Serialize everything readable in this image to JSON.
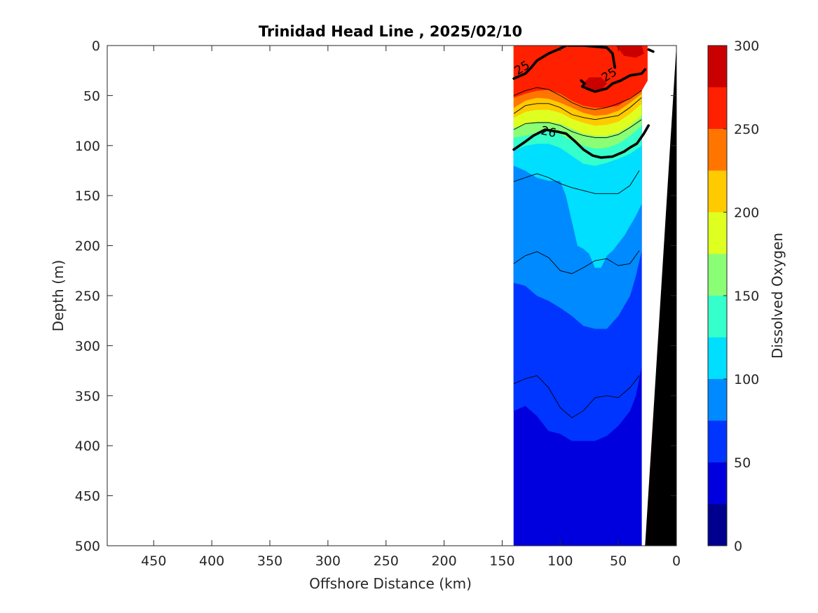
{
  "chart_data": {
    "type": "contour",
    "title": "Trinidad Head Line , 2025/02/10",
    "xlabel": "Offshore Distance (km)",
    "ylabel": "Depth (m)",
    "xlim": [
      490,
      0
    ],
    "ylim": [
      0,
      500
    ],
    "x_reversed": true,
    "y_reversed": true,
    "x_ticks": [
      450,
      400,
      350,
      300,
      250,
      200,
      150,
      100,
      50,
      0
    ],
    "y_ticks": [
      0,
      50,
      100,
      150,
      200,
      250,
      300,
      350,
      400,
      450,
      500
    ],
    "grid": false,
    "filled_variable": "Dissolved Oxygen",
    "colorbar": {
      "label": "Dissolved Oxygen",
      "range": [
        0,
        300
      ],
      "ticks": [
        0,
        50,
        100,
        150,
        200,
        250,
        300
      ],
      "levels": [
        {
          "from": 0,
          "to": 25,
          "color": "#00008f"
        },
        {
          "from": 25,
          "to": 50,
          "color": "#0000df"
        },
        {
          "from": 50,
          "to": 75,
          "color": "#0035ff"
        },
        {
          "from": 75,
          "to": 100,
          "color": "#008aff"
        },
        {
          "from": 100,
          "to": 125,
          "color": "#00dfff"
        },
        {
          "from": 125,
          "to": 150,
          "color": "#35ffca"
        },
        {
          "from": 150,
          "to": 175,
          "color": "#8aff75"
        },
        {
          "from": 175,
          "to": 200,
          "color": "#dfff20"
        },
        {
          "from": 200,
          "to": 225,
          "color": "#ffca00"
        },
        {
          "from": 225,
          "to": 250,
          "color": "#ff7500"
        },
        {
          "from": 250,
          "to": 275,
          "color": "#ff2000"
        },
        {
          "from": 275,
          "to": 300,
          "color": "#ca0000"
        }
      ]
    },
    "bottom_fill_color": "#000000",
    "filled_regions": [
      {
        "color": "#0000df",
        "points": [
          [
            140,
            500
          ],
          [
            30,
            500
          ],
          [
            30,
            0
          ],
          [
            140,
            0
          ]
        ]
      },
      {
        "color": "#0035ff",
        "points": [
          [
            140,
            365
          ],
          [
            130,
            360
          ],
          [
            120,
            370
          ],
          [
            110,
            385
          ],
          [
            100,
            388
          ],
          [
            90,
            395
          ],
          [
            80,
            395
          ],
          [
            70,
            395
          ],
          [
            60,
            390
          ],
          [
            50,
            380
          ],
          [
            40,
            365
          ],
          [
            35,
            350
          ],
          [
            30,
            320
          ],
          [
            30,
            0
          ],
          [
            140,
            0
          ]
        ]
      },
      {
        "color": "#008aff",
        "points": [
          [
            140,
            237
          ],
          [
            130,
            240
          ],
          [
            120,
            250
          ],
          [
            110,
            255
          ],
          [
            100,
            262
          ],
          [
            90,
            270
          ],
          [
            80,
            280
          ],
          [
            70,
            283
          ],
          [
            60,
            283
          ],
          [
            50,
            270
          ],
          [
            40,
            250
          ],
          [
            35,
            230
          ],
          [
            30,
            205
          ],
          [
            30,
            0
          ],
          [
            140,
            0
          ]
        ]
      },
      {
        "color": "#00dfff",
        "points": [
          [
            140,
            120
          ],
          [
            130,
            125
          ],
          [
            120,
            132
          ],
          [
            110,
            135
          ],
          [
            100,
            135
          ],
          [
            95,
            150
          ],
          [
            90,
            175
          ],
          [
            85,
            200
          ],
          [
            80,
            203
          ],
          [
            75,
            208
          ],
          [
            70,
            222
          ],
          [
            65,
            222
          ],
          [
            60,
            210
          ],
          [
            55,
            205
          ],
          [
            45,
            190
          ],
          [
            35,
            170
          ],
          [
            30,
            158
          ],
          [
            30,
            0
          ],
          [
            140,
            0
          ]
        ]
      },
      {
        "color": "#35ffca",
        "points": [
          [
            140,
            105
          ],
          [
            130,
            100
          ],
          [
            120,
            98
          ],
          [
            110,
            98
          ],
          [
            100,
            102
          ],
          [
            90,
            110
          ],
          [
            80,
            118
          ],
          [
            70,
            120
          ],
          [
            60,
            117
          ],
          [
            50,
            113
          ],
          [
            40,
            108
          ],
          [
            30,
            100
          ],
          [
            30,
            0
          ],
          [
            140,
            0
          ]
        ]
      },
      {
        "color": "#8aff75",
        "points": [
          [
            140,
            92
          ],
          [
            130,
            90
          ],
          [
            120,
            87
          ],
          [
            110,
            85
          ],
          [
            100,
            88
          ],
          [
            90,
            95
          ],
          [
            80,
            100
          ],
          [
            70,
            103
          ],
          [
            60,
            102
          ],
          [
            50,
            98
          ],
          [
            40,
            90
          ],
          [
            30,
            80
          ],
          [
            30,
            0
          ],
          [
            140,
            0
          ]
        ]
      },
      {
        "color": "#dfff20",
        "points": [
          [
            140,
            82
          ],
          [
            130,
            78
          ],
          [
            120,
            76
          ],
          [
            110,
            76
          ],
          [
            100,
            78
          ],
          [
            90,
            83
          ],
          [
            80,
            88
          ],
          [
            70,
            90
          ],
          [
            60,
            90
          ],
          [
            50,
            87
          ],
          [
            40,
            80
          ],
          [
            30,
            70
          ],
          [
            30,
            0
          ],
          [
            140,
            0
          ]
        ]
      },
      {
        "color": "#ffca00",
        "points": [
          [
            140,
            72
          ],
          [
            130,
            66
          ],
          [
            120,
            64
          ],
          [
            110,
            64
          ],
          [
            100,
            67
          ],
          [
            90,
            73
          ],
          [
            80,
            77
          ],
          [
            70,
            80
          ],
          [
            60,
            79
          ],
          [
            50,
            76
          ],
          [
            40,
            68
          ],
          [
            30,
            58
          ],
          [
            30,
            0
          ],
          [
            140,
            0
          ]
        ]
      },
      {
        "color": "#ff7500",
        "points": [
          [
            140,
            62
          ],
          [
            130,
            55
          ],
          [
            120,
            52
          ],
          [
            110,
            53
          ],
          [
            100,
            57
          ],
          [
            90,
            62
          ],
          [
            80,
            67
          ],
          [
            70,
            70
          ],
          [
            60,
            69
          ],
          [
            50,
            65
          ],
          [
            40,
            57
          ],
          [
            30,
            48
          ],
          [
            30,
            0
          ],
          [
            140,
            0
          ]
        ]
      },
      {
        "color": "#ff2000",
        "points": [
          [
            140,
            0
          ],
          [
            25,
            0
          ],
          [
            25,
            35
          ],
          [
            30,
            45
          ],
          [
            40,
            52
          ],
          [
            50,
            60
          ],
          [
            60,
            62
          ],
          [
            70,
            62
          ],
          [
            80,
            60
          ],
          [
            90,
            55
          ],
          [
            100,
            48
          ],
          [
            110,
            44
          ],
          [
            120,
            45
          ],
          [
            130,
            48
          ],
          [
            140,
            52
          ]
        ]
      },
      {
        "color": "#ca0000",
        "points": [
          [
            80,
            38
          ],
          [
            75,
            32
          ],
          [
            65,
            32
          ],
          [
            60,
            38
          ],
          [
            65,
            44
          ],
          [
            75,
            44
          ]
        ]
      },
      {
        "color": "#ca0000",
        "points": [
          [
            52,
            0
          ],
          [
            30,
            0
          ],
          [
            28,
            8
          ],
          [
            35,
            12
          ],
          [
            45,
            10
          ]
        ]
      },
      {
        "color": "#0000df",
        "points": [
          [
            113,
            428
          ],
          [
            110,
            423
          ],
          [
            107,
            428
          ],
          [
            108,
            450
          ],
          [
            110,
            463
          ],
          [
            112,
            455
          ],
          [
            113,
            440
          ]
        ]
      }
    ],
    "thin_contours": [
      {
        "points": [
          [
            140,
            50
          ],
          [
            130,
            45
          ],
          [
            120,
            42
          ],
          [
            110,
            44
          ],
          [
            100,
            50
          ],
          [
            90,
            57
          ],
          [
            80,
            62
          ],
          [
            70,
            64
          ],
          [
            60,
            62
          ],
          [
            50,
            58
          ],
          [
            40,
            53
          ],
          [
            30,
            45
          ]
        ]
      },
      {
        "points": [
          [
            140,
            68
          ],
          [
            130,
            60
          ],
          [
            120,
            58
          ],
          [
            110,
            58
          ],
          [
            100,
            62
          ],
          [
            90,
            69
          ],
          [
            80,
            72
          ],
          [
            70,
            74
          ],
          [
            60,
            72
          ],
          [
            50,
            70
          ],
          [
            40,
            62
          ],
          [
            30,
            52
          ]
        ]
      },
      {
        "points": [
          [
            140,
            84
          ],
          [
            130,
            78
          ],
          [
            120,
            77
          ],
          [
            110,
            77
          ],
          [
            100,
            80
          ],
          [
            90,
            86
          ],
          [
            80,
            90
          ],
          [
            70,
            92
          ],
          [
            60,
            92
          ],
          [
            50,
            89
          ],
          [
            40,
            82
          ],
          [
            30,
            74
          ]
        ]
      },
      {
        "points": [
          [
            140,
            136
          ],
          [
            130,
            132
          ],
          [
            120,
            128
          ],
          [
            110,
            132
          ],
          [
            100,
            138
          ],
          [
            90,
            142
          ],
          [
            80,
            145
          ],
          [
            70,
            148
          ],
          [
            60,
            148
          ],
          [
            50,
            148
          ],
          [
            40,
            140
          ],
          [
            32,
            125
          ]
        ]
      },
      {
        "points": [
          [
            140,
            218
          ],
          [
            130,
            210
          ],
          [
            120,
            206
          ],
          [
            110,
            212
          ],
          [
            100,
            225
          ],
          [
            90,
            228
          ],
          [
            80,
            222
          ],
          [
            70,
            215
          ],
          [
            60,
            213
          ],
          [
            50,
            220
          ],
          [
            40,
            218
          ],
          [
            32,
            205
          ]
        ]
      },
      {
        "points": [
          [
            140,
            338
          ],
          [
            130,
            333
          ],
          [
            120,
            330
          ],
          [
            110,
            342
          ],
          [
            100,
            362
          ],
          [
            90,
            372
          ],
          [
            80,
            365
          ],
          [
            70,
            352
          ],
          [
            60,
            350
          ],
          [
            50,
            352
          ],
          [
            40,
            342
          ],
          [
            32,
            330
          ]
        ]
      }
    ],
    "thick_contours": [
      {
        "label": "25",
        "label_at": [
          133,
          22
        ],
        "label_angle": -32,
        "points": [
          [
            140,
            33
          ],
          [
            130,
            28
          ],
          [
            125,
            22
          ],
          [
            120,
            15
          ],
          [
            110,
            8
          ],
          [
            100,
            3
          ],
          [
            95,
            0
          ]
        ]
      },
      {
        "label": "",
        "points": [
          [
            93,
            0
          ],
          [
            80,
            0
          ],
          [
            70,
            1
          ],
          [
            60,
            2
          ],
          [
            55,
            8
          ],
          [
            53,
            22
          ]
        ]
      },
      {
        "label": "25",
        "label_at": [
          58,
          29
        ],
        "label_angle": -32,
        "points": [
          [
            81,
            41
          ],
          [
            75,
            44
          ],
          [
            70,
            46
          ],
          [
            60,
            43
          ],
          [
            55,
            38
          ],
          [
            48,
            35
          ],
          [
            40,
            30
          ],
          [
            30,
            28
          ],
          [
            27,
            24
          ]
        ]
      },
      {
        "label": "",
        "points": [
          [
            81,
            41
          ],
          [
            79,
            38
          ],
          [
            82,
            35
          ]
        ]
      },
      {
        "label": "26",
        "label_at": [
          110,
          86
        ],
        "label_angle": 12,
        "points": [
          [
            140,
            104
          ],
          [
            130,
            96
          ],
          [
            123,
            90
          ],
          [
            113,
            84
          ],
          [
            103,
            86
          ],
          [
            95,
            88
          ],
          [
            87,
            96
          ],
          [
            80,
            104
          ],
          [
            72,
            110
          ],
          [
            65,
            112
          ],
          [
            55,
            111
          ],
          [
            45,
            106
          ],
          [
            40,
            102
          ],
          [
            34,
            98
          ],
          [
            28,
            88
          ],
          [
            24,
            80
          ]
        ]
      },
      {
        "label": "",
        "points": [
          [
            24,
            4
          ],
          [
            20,
            6
          ]
        ]
      }
    ],
    "bottom_region": {
      "points": [
        [
          0,
          0
        ],
        [
          27,
          500
        ],
        [
          0,
          500
        ]
      ],
      "ship_edge": [
        [
          0,
          4
        ],
        [
          10,
          90
        ],
        [
          25,
          120
        ]
      ]
    }
  }
}
